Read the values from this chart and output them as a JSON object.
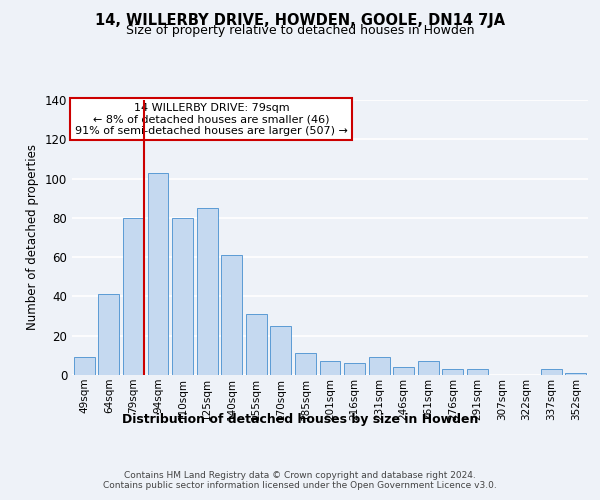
{
  "title": "14, WILLERBY DRIVE, HOWDEN, GOOLE, DN14 7JA",
  "subtitle": "Size of property relative to detached houses in Howden",
  "xlabel": "Distribution of detached houses by size in Howden",
  "ylabel": "Number of detached properties",
  "categories": [
    "49sqm",
    "64sqm",
    "79sqm",
    "94sqm",
    "110sqm",
    "125sqm",
    "140sqm",
    "155sqm",
    "170sqm",
    "185sqm",
    "201sqm",
    "216sqm",
    "231sqm",
    "246sqm",
    "261sqm",
    "276sqm",
    "291sqm",
    "307sqm",
    "322sqm",
    "337sqm",
    "352sqm"
  ],
  "values": [
    9,
    41,
    80,
    103,
    80,
    85,
    61,
    31,
    25,
    11,
    7,
    6,
    9,
    4,
    7,
    3,
    3,
    0,
    0,
    3,
    1
  ],
  "bar_color": "#c5d9f0",
  "bar_edge_color": "#5b9bd5",
  "vline_x_idx": 2,
  "vline_color": "#cc0000",
  "annotation_text": "14 WILLERBY DRIVE: 79sqm\n← 8% of detached houses are smaller (46)\n91% of semi-detached houses are larger (507) →",
  "annotation_box_color": "white",
  "annotation_box_edge": "#cc0000",
  "footer": "Contains HM Land Registry data © Crown copyright and database right 2024.\nContains public sector information licensed under the Open Government Licence v3.0.",
  "ylim": [
    0,
    140
  ],
  "yticks": [
    0,
    20,
    40,
    60,
    80,
    100,
    120,
    140
  ],
  "background_color": "#eef2f8",
  "grid_color": "white"
}
